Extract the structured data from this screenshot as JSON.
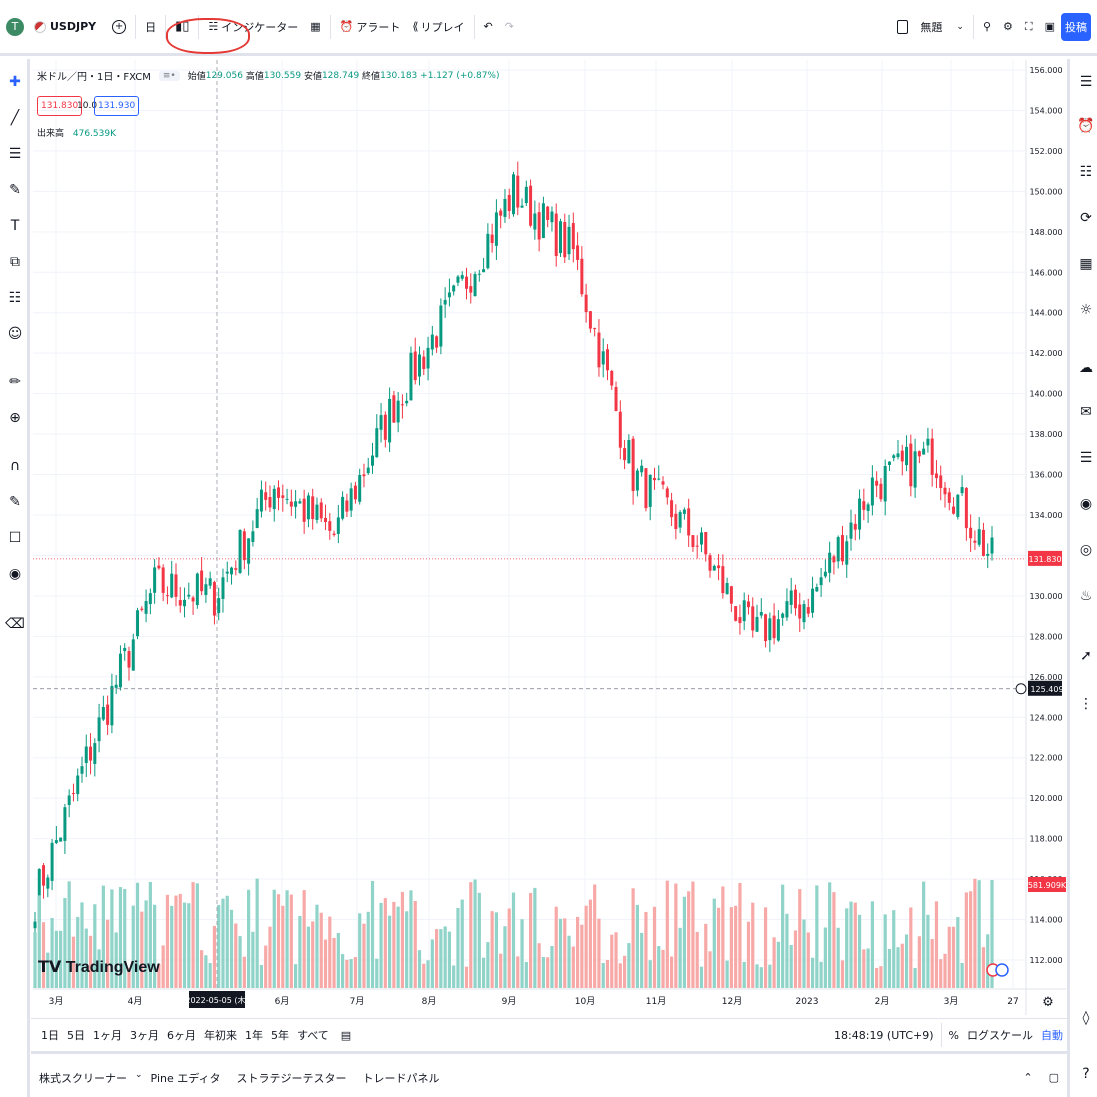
{
  "topbar": {
    "avatar": "T",
    "symbol": "USDJPY",
    "interval": "日",
    "indicators": "インジケーター",
    "alert": "アラート",
    "replay": "リプレイ",
    "layout_name": "無題",
    "post": "投稿"
  },
  "legend": {
    "title": "米ドル／円・1日・FXCM",
    "open_label": "始値",
    "open": "129.056",
    "high_label": "高値",
    "high": "130.559",
    "low_label": "安値",
    "low": "128.749",
    "close_label": "終値",
    "close": "130.183",
    "change": "+1.127 (+0.87%)",
    "bid": "131.830",
    "spread": "10.0",
    "ask": "131.930",
    "volume_label": "出来高",
    "volume": "476.539K"
  },
  "price_axis": {
    "ticks": [
      "156.000",
      "154.000",
      "152.000",
      "150.000",
      "148.000",
      "146.000",
      "144.000",
      "142.000",
      "140.000",
      "138.000",
      "136.000",
      "134.000",
      "132.000",
      "130.000",
      "128.000",
      "126.000",
      "124.000",
      "122.000",
      "120.000",
      "118.000",
      "116.000",
      "114.000",
      "112.000"
    ],
    "current_price": "131.830",
    "crosshair_price": "125.409",
    "volume_value": "581.909K"
  },
  "time_axis": {
    "labels": [
      "3月",
      "4月",
      "6月",
      "7月",
      "8月",
      "9月",
      "10月",
      "11月",
      "12月",
      "2023",
      "2月",
      "3月",
      "27"
    ],
    "crosshair_date": "2022-05-05 (木)"
  },
  "watermark": "TradingView",
  "bottombar": {
    "ranges": [
      "1日",
      "5日",
      "1ヶ月",
      "3ヶ月",
      "6ヶ月",
      "年初来",
      "1年",
      "5年",
      "すべて"
    ],
    "time": "18:48:19 (UTC+9)",
    "percent": "%",
    "log": "ログスケール",
    "auto": "自動"
  },
  "panelbar": {
    "tabs": [
      "株式スクリーナー",
      "Pine エディタ",
      "ストラテジーテスター",
      "トレードパネル"
    ]
  },
  "colors": {
    "up": "#089981",
    "down": "#f23645",
    "vol_up": "#8fd3c9",
    "vol_down": "#f7a9a7",
    "accent": "#2962ff"
  },
  "chart_data": {
    "type": "candlestick",
    "x": [
      "2022-02-24",
      "2022-03-25",
      "2022-04-29",
      "2022-06-01",
      "2022-07-01",
      "2022-08-01",
      "2022-09-01",
      "2022-10-01",
      "2022-10-21",
      "2022-11-01",
      "2022-12-01",
      "2022-12-20",
      "2023-01-16",
      "2023-02-01",
      "2023-03-01",
      "2023-03-08",
      "2023-03-17"
    ],
    "close": [
      115.0,
      123.0,
      130.5,
      130.0,
      135.5,
      133.0,
      139.5,
      144.5,
      150.0,
      147.0,
      136.0,
      133.0,
      128.0,
      130.0,
      135.5,
      137.0,
      131.8
    ],
    "ylim": [
      110,
      157
    ]
  }
}
